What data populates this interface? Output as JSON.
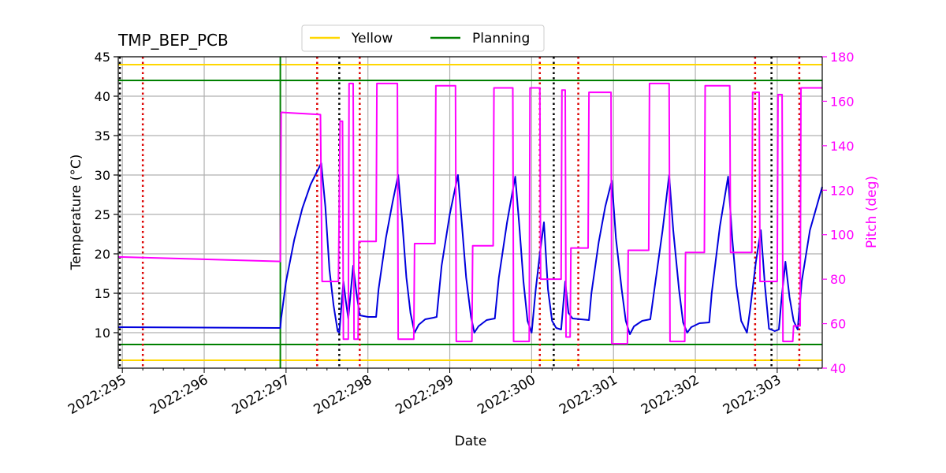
{
  "chart_data": {
    "type": "line",
    "title": "TMP_BEP_PCB",
    "xlabel": "Date",
    "ylabel": "Temperature ($^\\circ$C)",
    "ylabel_display": "Temperature (°C)",
    "y2label": "Pitch (deg)",
    "xlim": [
      294.95,
      303.55
    ],
    "ylim": [
      5.5,
      45
    ],
    "y2lim": [
      40,
      180
    ],
    "x_ticks": [
      {
        "value": 295,
        "label": "2022:295"
      },
      {
        "value": 296,
        "label": "2022:296"
      },
      {
        "value": 297,
        "label": "2022:297"
      },
      {
        "value": 298,
        "label": "2022:298"
      },
      {
        "value": 299,
        "label": "2022:299"
      },
      {
        "value": 300,
        "label": "2022:300"
      },
      {
        "value": 301,
        "label": "2022:301"
      },
      {
        "value": 302,
        "label": "2022:302"
      },
      {
        "value": 303,
        "label": "2022:303"
      }
    ],
    "y_ticks": [
      {
        "value": 10,
        "label": "10"
      },
      {
        "value": 15,
        "label": "15"
      },
      {
        "value": 20,
        "label": "20"
      },
      {
        "value": 25,
        "label": "25"
      },
      {
        "value": 30,
        "label": "30"
      },
      {
        "value": 35,
        "label": "35"
      },
      {
        "value": 40,
        "label": "40"
      },
      {
        "value": 45,
        "label": "45"
      }
    ],
    "y2_ticks": [
      {
        "value": 40,
        "label": "40"
      },
      {
        "value": 60,
        "label": "60"
      },
      {
        "value": 80,
        "label": "80"
      },
      {
        "value": 100,
        "label": "100"
      },
      {
        "value": 120,
        "label": "120"
      },
      {
        "value": 140,
        "label": "140"
      },
      {
        "value": 160,
        "label": "160"
      },
      {
        "value": 180,
        "label": "180"
      }
    ],
    "legend": {
      "placement": "top-center",
      "entries": [
        {
          "label": "Yellow",
          "color": "#ffd700"
        },
        {
          "label": "Planning",
          "color": "#008000"
        }
      ]
    },
    "limit_lines": [
      {
        "name": "yellow-high",
        "value": 44,
        "color": "#ffd700"
      },
      {
        "name": "yellow-low",
        "value": 6.5,
        "color": "#ffd700"
      },
      {
        "name": "planning-high",
        "value": 42,
        "color": "#008000"
      },
      {
        "name": "planning-low",
        "value": 8.5,
        "color": "#008000"
      }
    ],
    "planning_start_x": 296.93,
    "black_dotted_x": [
      294.97,
      297.65,
      300.27,
      302.93
    ],
    "red_dotted_x": [
      295.25,
      297.38,
      297.9,
      300.1,
      300.57,
      302.73,
      303.27
    ],
    "colors": {
      "temperature": "#0000dd",
      "pitch": "#ff00ff",
      "pitch_axis": "#ff00ff",
      "grid": "#b0b0b0",
      "black_dotted": "#000000",
      "red_dotted": "#dd0000"
    },
    "series": [
      {
        "name": "Temperature",
        "axis": "left",
        "points": [
          [
            294.95,
            10.7
          ],
          [
            296.93,
            10.6
          ],
          [
            296.94,
            11.8
          ],
          [
            297.0,
            16.5
          ],
          [
            297.1,
            21.8
          ],
          [
            297.2,
            25.8
          ],
          [
            297.3,
            28.8
          ],
          [
            297.43,
            31.5
          ],
          [
            297.48,
            26.0
          ],
          [
            297.53,
            18.0
          ],
          [
            297.58,
            13.5
          ],
          [
            297.63,
            10.2
          ],
          [
            297.65,
            10.0
          ],
          [
            297.7,
            16.5
          ],
          [
            297.73,
            14.0
          ],
          [
            297.76,
            11.8
          ],
          [
            297.82,
            18.5
          ],
          [
            297.86,
            15.0
          ],
          [
            297.9,
            12.2
          ],
          [
            298.0,
            12.0
          ],
          [
            298.1,
            12.0
          ],
          [
            298.13,
            15.5
          ],
          [
            298.22,
            22.0
          ],
          [
            298.3,
            26.5
          ],
          [
            298.37,
            30.0
          ],
          [
            298.42,
            24.0
          ],
          [
            298.47,
            17.0
          ],
          [
            298.52,
            12.5
          ],
          [
            298.57,
            10.0
          ],
          [
            298.62,
            11.0
          ],
          [
            298.7,
            11.7
          ],
          [
            298.8,
            11.9
          ],
          [
            298.84,
            12.0
          ],
          [
            298.9,
            18.5
          ],
          [
            299.0,
            25.0
          ],
          [
            299.1,
            30.0
          ],
          [
            299.15,
            23.5
          ],
          [
            299.2,
            17.0
          ],
          [
            299.26,
            12.0
          ],
          [
            299.3,
            10.0
          ],
          [
            299.35,
            10.8
          ],
          [
            299.45,
            11.6
          ],
          [
            299.55,
            11.8
          ],
          [
            299.6,
            17.0
          ],
          [
            299.7,
            24.0
          ],
          [
            299.8,
            29.8
          ],
          [
            299.85,
            23.5
          ],
          [
            299.9,
            16.5
          ],
          [
            299.95,
            11.5
          ],
          [
            300.0,
            10.0
          ],
          [
            300.05,
            15.5
          ],
          [
            300.1,
            20.0
          ],
          [
            300.15,
            24.0
          ],
          [
            300.2,
            15.5
          ],
          [
            300.25,
            11.5
          ],
          [
            300.3,
            10.6
          ],
          [
            300.36,
            10.4
          ],
          [
            300.41,
            16.5
          ],
          [
            300.45,
            12.5
          ],
          [
            300.5,
            11.8
          ],
          [
            300.6,
            11.7
          ],
          [
            300.7,
            11.6
          ],
          [
            300.73,
            15.0
          ],
          [
            300.82,
            21.5
          ],
          [
            300.9,
            26.0
          ],
          [
            300.98,
            29.3
          ],
          [
            301.03,
            22.0
          ],
          [
            301.1,
            15.5
          ],
          [
            301.15,
            11.5
          ],
          [
            301.2,
            9.8
          ],
          [
            301.25,
            10.8
          ],
          [
            301.35,
            11.5
          ],
          [
            301.45,
            11.7
          ],
          [
            301.5,
            15.5
          ],
          [
            301.6,
            23.0
          ],
          [
            301.68,
            30.0
          ],
          [
            301.73,
            23.0
          ],
          [
            301.8,
            15.5
          ],
          [
            301.85,
            11.3
          ],
          [
            301.9,
            10.0
          ],
          [
            301.95,
            10.7
          ],
          [
            302.05,
            11.2
          ],
          [
            302.17,
            11.3
          ],
          [
            302.2,
            15.0
          ],
          [
            302.3,
            23.5
          ],
          [
            302.4,
            29.8
          ],
          [
            302.45,
            22.0
          ],
          [
            302.5,
            16.0
          ],
          [
            302.56,
            11.5
          ],
          [
            302.63,
            10.0
          ],
          [
            302.67,
            13.0
          ],
          [
            302.74,
            19.0
          ],
          [
            302.8,
            23.0
          ],
          [
            302.85,
            16.0
          ],
          [
            302.9,
            10.5
          ],
          [
            302.97,
            10.2
          ],
          [
            303.02,
            10.4
          ],
          [
            303.05,
            14.0
          ],
          [
            303.1,
            19.0
          ],
          [
            303.15,
            14.5
          ],
          [
            303.2,
            11.5
          ],
          [
            303.25,
            10.4
          ],
          [
            303.3,
            16.5
          ],
          [
            303.4,
            23.0
          ],
          [
            303.55,
            28.5
          ]
        ]
      },
      {
        "name": "Pitch",
        "axis": "right",
        "points": [
          [
            294.95,
            90.0
          ],
          [
            296.93,
            88.0
          ],
          [
            296.94,
            155.0
          ],
          [
            297.42,
            154.0
          ],
          [
            297.44,
            79.0
          ],
          [
            297.64,
            79.0
          ],
          [
            297.66,
            151.0
          ],
          [
            297.69,
            151.0
          ],
          [
            297.7,
            53.0
          ],
          [
            297.76,
            53.0
          ],
          [
            297.77,
            168.0
          ],
          [
            297.82,
            168.0
          ],
          [
            297.83,
            53.0
          ],
          [
            297.88,
            53.0
          ],
          [
            297.89,
            97.0
          ],
          [
            298.1,
            97.0
          ],
          [
            298.11,
            168.0
          ],
          [
            298.36,
            168.0
          ],
          [
            298.37,
            53.0
          ],
          [
            298.56,
            53.0
          ],
          [
            298.57,
            96.0
          ],
          [
            298.82,
            96.0
          ],
          [
            298.83,
            167.0
          ],
          [
            299.07,
            167.0
          ],
          [
            299.08,
            52.0
          ],
          [
            299.27,
            52.0
          ],
          [
            299.28,
            95.0
          ],
          [
            299.53,
            95.0
          ],
          [
            299.54,
            166.0
          ],
          [
            299.77,
            166.0
          ],
          [
            299.78,
            52.0
          ],
          [
            299.97,
            52.0
          ],
          [
            299.98,
            166.0
          ],
          [
            300.1,
            166.0
          ],
          [
            300.11,
            80.0
          ],
          [
            300.36,
            80.0
          ],
          [
            300.37,
            165.0
          ],
          [
            300.41,
            165.0
          ],
          [
            300.42,
            54.0
          ],
          [
            300.47,
            54.0
          ],
          [
            300.48,
            94.0
          ],
          [
            300.69,
            94.0
          ],
          [
            300.7,
            164.0
          ],
          [
            300.97,
            164.0
          ],
          [
            300.98,
            51.0
          ],
          [
            301.17,
            51.0
          ],
          [
            301.18,
            93.0
          ],
          [
            301.43,
            93.0
          ],
          [
            301.44,
            168.0
          ],
          [
            301.68,
            168.0
          ],
          [
            301.69,
            52.0
          ],
          [
            301.87,
            52.0
          ],
          [
            301.88,
            92.0
          ],
          [
            302.11,
            92.0
          ],
          [
            302.12,
            167.0
          ],
          [
            302.42,
            167.0
          ],
          [
            302.43,
            92.0
          ],
          [
            302.69,
            92.0
          ],
          [
            302.7,
            164.0
          ],
          [
            302.78,
            164.0
          ],
          [
            302.79,
            79.0
          ],
          [
            303.0,
            79.0
          ],
          [
            303.01,
            163.0
          ],
          [
            303.06,
            163.0
          ],
          [
            303.07,
            52.0
          ],
          [
            303.19,
            52.0
          ],
          [
            303.2,
            59.0
          ],
          [
            303.28,
            59.0
          ],
          [
            303.29,
            166.0
          ],
          [
            303.55,
            166.0
          ]
        ]
      }
    ]
  }
}
